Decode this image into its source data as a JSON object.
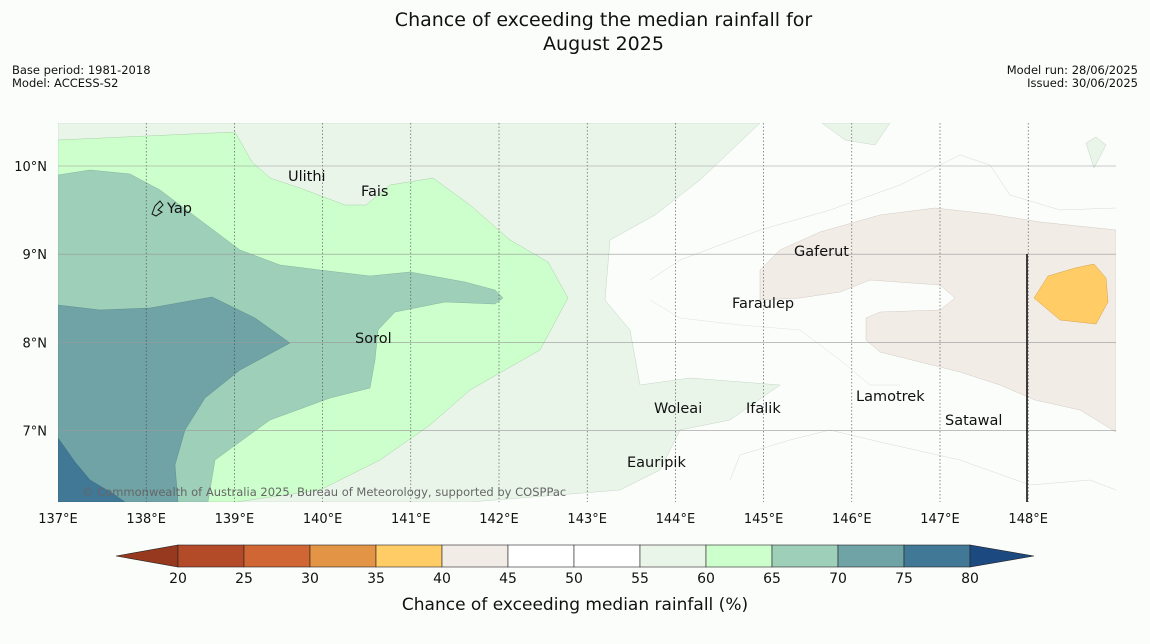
{
  "header": {
    "title_line1": "Chance of exceeding the median rainfall for",
    "title_line2": "August 2025",
    "base_period": "Base period: 1981-2018",
    "model": "Model: ACCESS-S2",
    "model_run": "Model run: 28/06/2025",
    "issued": "Issued: 30/06/2025"
  },
  "map": {
    "lon_ticks": [
      "137°E",
      "138°E",
      "139°E",
      "140°E",
      "141°E",
      "142°E",
      "143°E",
      "144°E",
      "145°E",
      "146°E",
      "147°E",
      "148°E"
    ],
    "lat_ticks": [
      "10°N",
      "9°N",
      "8°N",
      "7°N"
    ],
    "places": [
      "Ulithi",
      "Fais",
      "Yap",
      "Gaferut",
      "Faraulep",
      "Sorol",
      "Woleai",
      "Ifalik",
      "Lamotrek",
      "Satawal",
      "Eauripik"
    ],
    "copyright": "© Commonwealth of Australia 2025, Bureau of Meteorology, supported by COSPPac"
  },
  "colorbar": {
    "title": "Chance of exceeding median rainfall (%)",
    "labels": [
      "20",
      "25",
      "30",
      "35",
      "40",
      "45",
      "50",
      "55",
      "60",
      "65",
      "70",
      "75",
      "80"
    ],
    "colors": [
      "#b34a28",
      "#cf6633",
      "#e39444",
      "#ffcc66",
      "#f2ece7",
      "#ffffff",
      "#ffffff",
      "#eaf5ea",
      "#ccffcc",
      "#9ecfb8",
      "#6fa3a6",
      "#407896"
    ],
    "under_color": "#97391f",
    "over_color": "#1c4a80"
  }
}
